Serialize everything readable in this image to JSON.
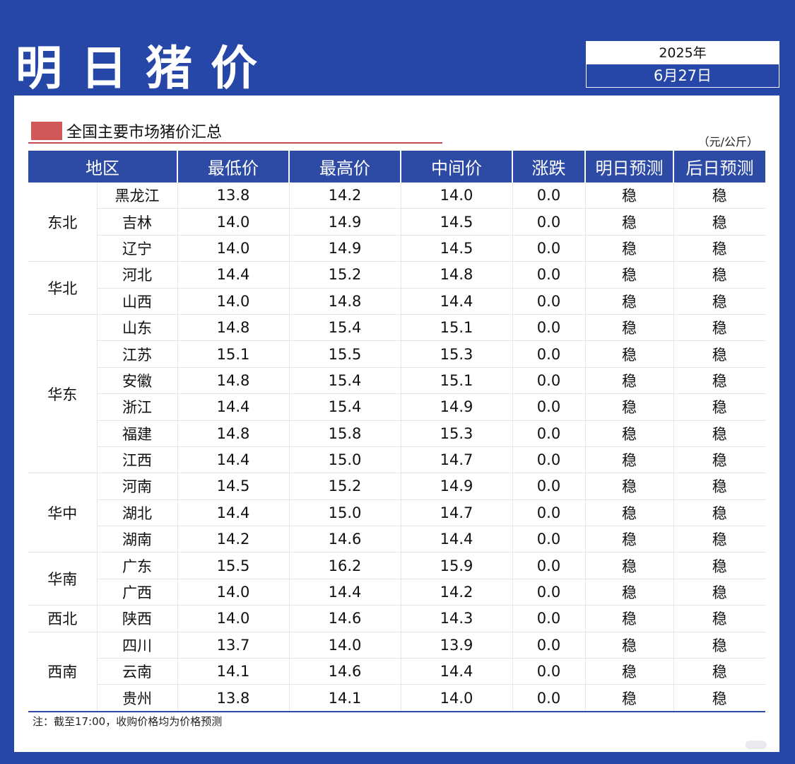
{
  "header": {
    "title": "明日猪价",
    "year": "2025年",
    "date": "6月27日"
  },
  "section": {
    "title": "全国主要市场猪价汇总",
    "unit": "（元/公斤）"
  },
  "table": {
    "columns": [
      "地区",
      "最低价",
      "最高价",
      "中间价",
      "涨跌",
      "明日预测",
      "后日预测"
    ],
    "groups": [
      {
        "region": "东北",
        "rows": [
          [
            "黑龙江",
            "13.8",
            "14.2",
            "14.0",
            "0.0",
            "稳",
            "稳"
          ],
          [
            "吉林",
            "14.0",
            "14.9",
            "14.5",
            "0.0",
            "稳",
            "稳"
          ],
          [
            "辽宁",
            "14.0",
            "14.9",
            "14.5",
            "0.0",
            "稳",
            "稳"
          ]
        ]
      },
      {
        "region": "华北",
        "rows": [
          [
            "河北",
            "14.4",
            "15.2",
            "14.8",
            "0.0",
            "稳",
            "稳"
          ],
          [
            "山西",
            "14.0",
            "14.8",
            "14.4",
            "0.0",
            "稳",
            "稳"
          ]
        ]
      },
      {
        "region": "华东",
        "rows": [
          [
            "山东",
            "14.8",
            "15.4",
            "15.1",
            "0.0",
            "稳",
            "稳"
          ],
          [
            "江苏",
            "15.1",
            "15.5",
            "15.3",
            "0.0",
            "稳",
            "稳"
          ],
          [
            "安徽",
            "14.8",
            "15.4",
            "15.1",
            "0.0",
            "稳",
            "稳"
          ],
          [
            "浙江",
            "14.4",
            "15.4",
            "14.9",
            "0.0",
            "稳",
            "稳"
          ],
          [
            "福建",
            "14.8",
            "15.8",
            "15.3",
            "0.0",
            "稳",
            "稳"
          ],
          [
            "江西",
            "14.4",
            "15.0",
            "14.7",
            "0.0",
            "稳",
            "稳"
          ]
        ]
      },
      {
        "region": "华中",
        "rows": [
          [
            "河南",
            "14.5",
            "15.2",
            "14.9",
            "0.0",
            "稳",
            "稳"
          ],
          [
            "湖北",
            "14.4",
            "15.0",
            "14.7",
            "0.0",
            "稳",
            "稳"
          ],
          [
            "湖南",
            "14.2",
            "14.6",
            "14.4",
            "0.0",
            "稳",
            "稳"
          ]
        ]
      },
      {
        "region": "华南",
        "rows": [
          [
            "广东",
            "15.5",
            "16.2",
            "15.9",
            "0.0",
            "稳",
            "稳"
          ],
          [
            "广西",
            "14.0",
            "14.4",
            "14.2",
            "0.0",
            "稳",
            "稳"
          ]
        ]
      },
      {
        "region": "西北",
        "rows": [
          [
            "陕西",
            "14.0",
            "14.6",
            "14.3",
            "0.0",
            "稳",
            "稳"
          ]
        ]
      },
      {
        "region": "西南",
        "rows": [
          [
            "四川",
            "13.7",
            "14.0",
            "13.9",
            "0.0",
            "稳",
            "稳"
          ],
          [
            "云南",
            "14.1",
            "14.6",
            "14.4",
            "0.0",
            "稳",
            "稳"
          ],
          [
            "贵州",
            "13.8",
            "14.1",
            "14.0",
            "0.0",
            "稳",
            "稳"
          ]
        ]
      }
    ]
  },
  "note": "注：截至17:00，收购价格均为价格预测",
  "colors": {
    "background": "#2747a8",
    "header_row": "#2d4ba4",
    "accent_red": "#d05858"
  }
}
